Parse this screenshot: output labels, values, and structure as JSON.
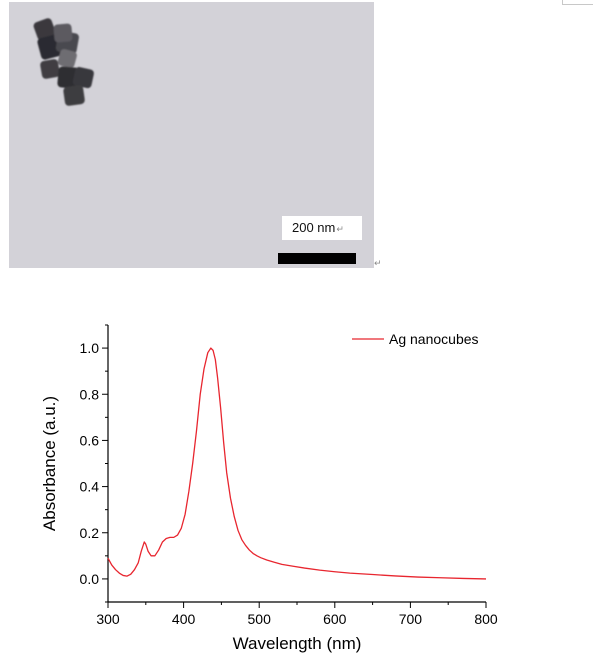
{
  "figure_top": {
    "scale_bar_label": "200 nm",
    "return_mark": "↵",
    "paragraph_mark": "↵"
  },
  "chart_data": {
    "type": "line",
    "title": "",
    "xlabel": "Wavelength (nm)",
    "ylabel": "Absorbance (a.u.)",
    "xlim": [
      300,
      800
    ],
    "ylim": [
      -0.1,
      1.1
    ],
    "xticks": [
      300,
      400,
      500,
      600,
      700,
      800
    ],
    "xtick_labels": [
      "300",
      "400",
      "500",
      "600",
      "700",
      "800"
    ],
    "yticks": [
      0.0,
      0.2,
      0.4,
      0.6,
      0.8,
      1.0
    ],
    "ytick_labels": [
      "0.0",
      "0.2",
      "0.4",
      "0.6",
      "0.8",
      "1.0"
    ],
    "grid": false,
    "legend": {
      "position": "top-right"
    },
    "series": [
      {
        "name": "Ag nanocubes",
        "color": "#e8262f",
        "x": [
          300,
          305,
          310,
          315,
          320,
          325,
          330,
          335,
          340,
          344,
          348,
          350,
          353,
          357,
          362,
          367,
          372,
          377,
          382,
          387,
          392,
          397,
          402,
          407,
          412,
          417,
          422,
          427,
          432,
          436,
          439,
          442,
          445,
          449,
          453,
          457,
          462,
          467,
          472,
          477,
          482,
          487,
          492,
          497,
          502,
          510,
          520,
          530,
          545,
          560,
          580,
          600,
          620,
          650,
          680,
          710,
          740,
          770,
          800
        ],
        "y": [
          0.09,
          0.06,
          0.04,
          0.025,
          0.015,
          0.012,
          0.02,
          0.04,
          0.07,
          0.12,
          0.16,
          0.15,
          0.12,
          0.1,
          0.1,
          0.125,
          0.16,
          0.175,
          0.18,
          0.18,
          0.19,
          0.22,
          0.28,
          0.38,
          0.5,
          0.64,
          0.8,
          0.91,
          0.98,
          1.0,
          0.99,
          0.95,
          0.87,
          0.74,
          0.59,
          0.46,
          0.35,
          0.27,
          0.21,
          0.17,
          0.145,
          0.125,
          0.11,
          0.1,
          0.092,
          0.082,
          0.072,
          0.063,
          0.055,
          0.047,
          0.038,
          0.031,
          0.025,
          0.019,
          0.013,
          0.008,
          0.005,
          0.002,
          0.0
        ]
      }
    ]
  }
}
